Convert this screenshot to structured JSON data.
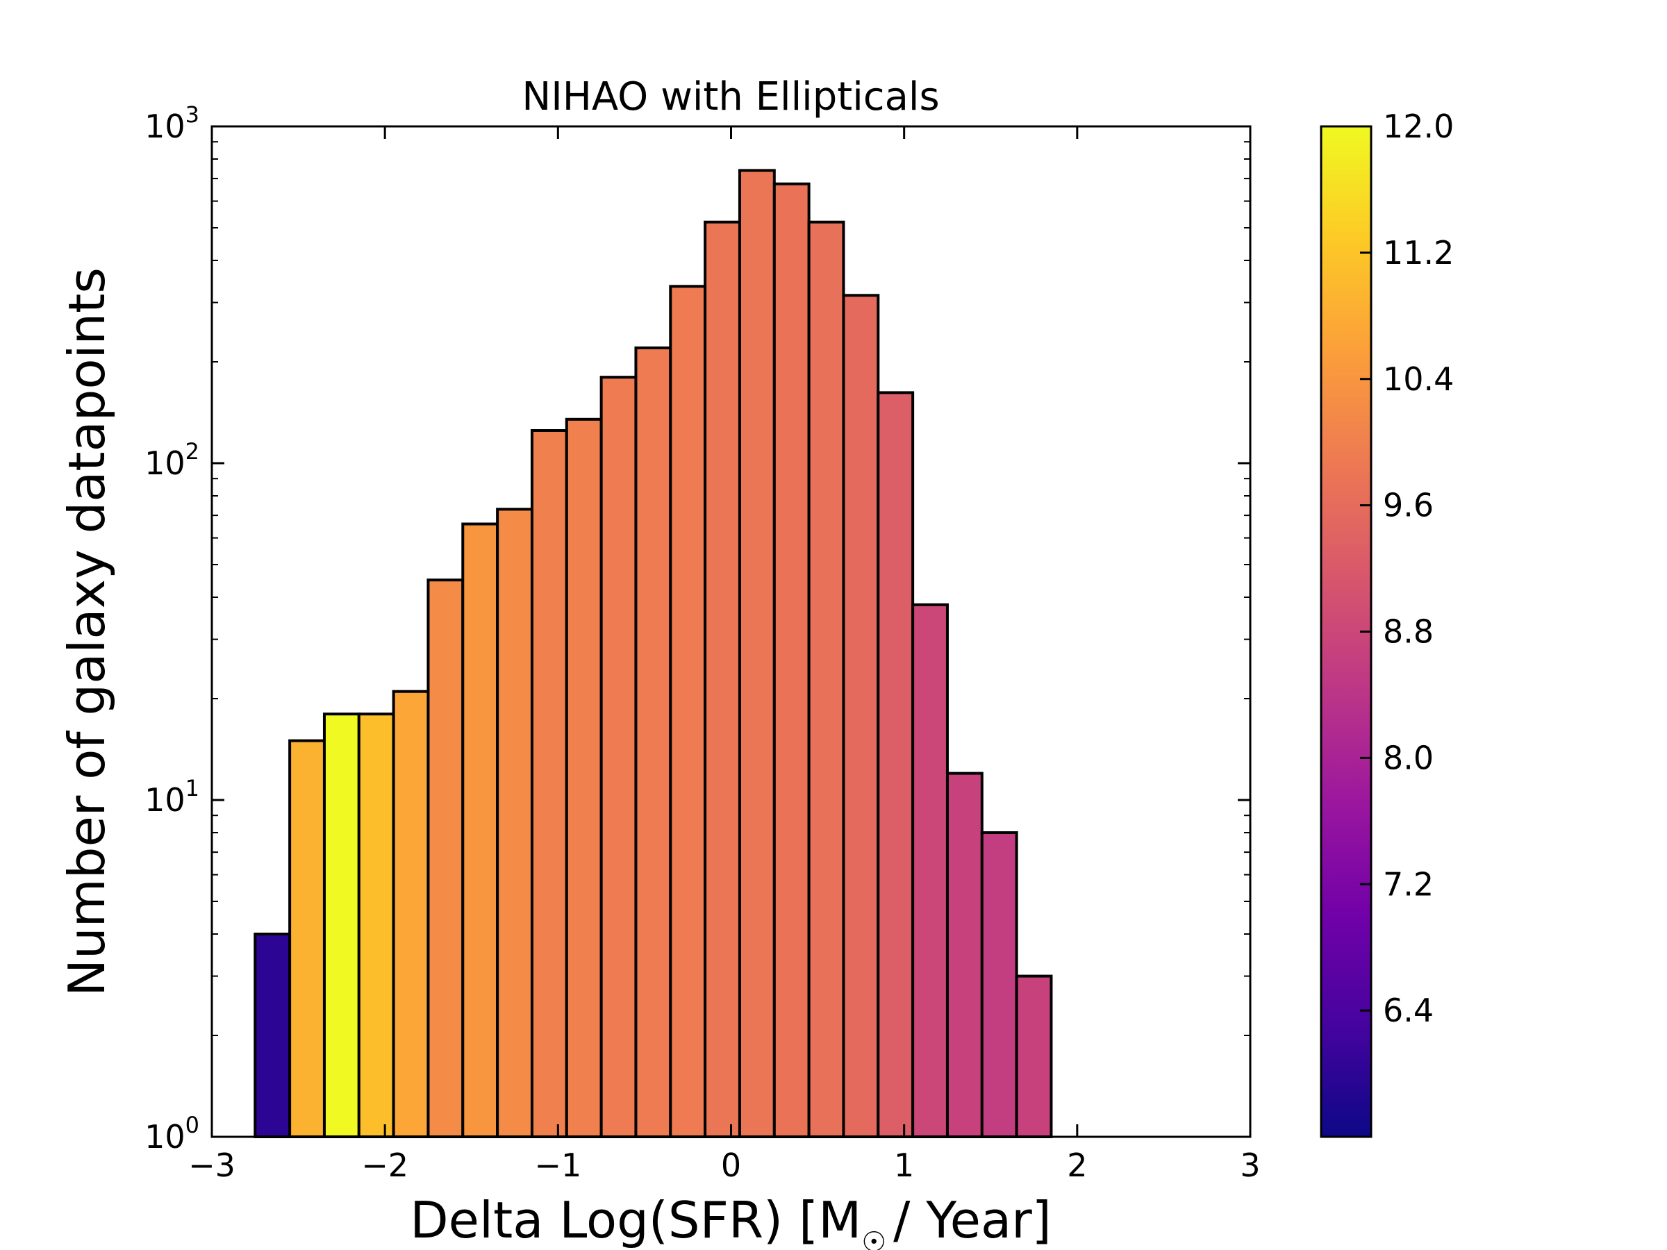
{
  "chart_data": {
    "type": "bar",
    "title": "NIHAO with Ellipticals",
    "xlabel": "Delta Log(SFR) [M☉ / Year]",
    "xlabel_parts": {
      "before": "Delta Log(SFR) [M",
      "symbol": "☉",
      "after": "/ Year]"
    },
    "ylabel": "Number of galaxy datapoints",
    "xlim": [
      -3,
      3
    ],
    "ylim": [
      1,
      1000
    ],
    "yscale": "log",
    "xticks": [
      {
        "value": -3,
        "label": "−3"
      },
      {
        "value": -2,
        "label": "−2"
      },
      {
        "value": -1,
        "label": "−1"
      },
      {
        "value": 0,
        "label": "0"
      },
      {
        "value": 1,
        "label": "1"
      },
      {
        "value": 2,
        "label": "2"
      },
      {
        "value": 3,
        "label": "3"
      }
    ],
    "yticks": [
      {
        "value": 1,
        "base": "10",
        "exp": "0"
      },
      {
        "value": 10,
        "base": "10",
        "exp": "1"
      },
      {
        "value": 100,
        "base": "10",
        "exp": "2"
      },
      {
        "value": 1000,
        "base": "10",
        "exp": "3"
      }
    ],
    "bin_width": 0.2,
    "bins": [
      {
        "x0": -2.75,
        "count": 4,
        "color_value": 6.0
      },
      {
        "x0": -2.55,
        "count": 15,
        "color_value": 10.9
      },
      {
        "x0": -2.35,
        "count": 18,
        "color_value": 12.0
      },
      {
        "x0": -2.15,
        "count": 18,
        "color_value": 11.1
      },
      {
        "x0": -1.95,
        "count": 21,
        "color_value": 10.7
      },
      {
        "x0": -1.75,
        "count": 45,
        "color_value": 10.2
      },
      {
        "x0": -1.55,
        "count": 66,
        "color_value": 10.4
      },
      {
        "x0": -1.35,
        "count": 73,
        "color_value": 10.2
      },
      {
        "x0": -1.15,
        "count": 125,
        "color_value": 10.0
      },
      {
        "x0": -0.95,
        "count": 135,
        "color_value": 10.0
      },
      {
        "x0": -0.75,
        "count": 180,
        "color_value": 9.9
      },
      {
        "x0": -0.55,
        "count": 220,
        "color_value": 9.9
      },
      {
        "x0": -0.35,
        "count": 335,
        "color_value": 9.9
      },
      {
        "x0": -0.15,
        "count": 520,
        "color_value": 9.8
      },
      {
        "x0": 0.05,
        "count": 740,
        "color_value": 9.8
      },
      {
        "x0": 0.25,
        "count": 675,
        "color_value": 9.75
      },
      {
        "x0": 0.45,
        "count": 520,
        "color_value": 9.7
      },
      {
        "x0": 0.65,
        "count": 315,
        "color_value": 9.55
      },
      {
        "x0": 0.85,
        "count": 162,
        "color_value": 9.3
      },
      {
        "x0": 1.05,
        "count": 38,
        "color_value": 8.8
      },
      {
        "x0": 1.25,
        "count": 12,
        "color_value": 8.7
      },
      {
        "x0": 1.45,
        "count": 8,
        "color_value": 8.6
      },
      {
        "x0": 1.65,
        "count": 3,
        "color_value": 8.7
      }
    ],
    "colorbar": {
      "colormap": "plasma",
      "vmin": 5.6,
      "vmax": 12.0,
      "ticks": [
        {
          "value": 6.4,
          "label": "6.4"
        },
        {
          "value": 7.2,
          "label": "7.2"
        },
        {
          "value": 8.0,
          "label": "8.0"
        },
        {
          "value": 8.8,
          "label": "8.8"
        },
        {
          "value": 9.6,
          "label": "9.6"
        },
        {
          "value": 10.4,
          "label": "10.4"
        },
        {
          "value": 11.2,
          "label": "11.2"
        },
        {
          "value": 12.0,
          "label": "12.0"
        }
      ]
    },
    "colormap_stops": [
      "#0d0887",
      "#46039f",
      "#7201a8",
      "#9c179e",
      "#bd3786",
      "#d8576b",
      "#ed7953",
      "#fb9f3a",
      "#fdca26",
      "#f0f921"
    ]
  }
}
